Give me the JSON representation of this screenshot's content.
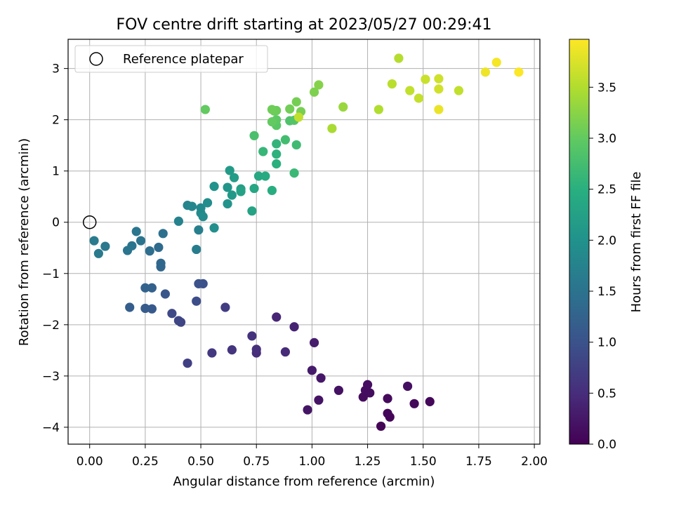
{
  "chart_data": {
    "type": "scatter",
    "title": "FOV centre drift starting at 2023/05/27 00:29:41",
    "xlabel": "Angular distance from reference (arcmin)",
    "ylabel": "Rotation from reference (arcmin)",
    "xlim": [
      -0.097,
      2.025
    ],
    "ylim": [
      -4.33,
      3.57
    ],
    "xticks": [
      "0.00",
      "0.25",
      "0.50",
      "0.75",
      "1.00",
      "1.25",
      "1.50",
      "1.75",
      "2.00"
    ],
    "yticks": [
      "−4",
      "−3",
      "−2",
      "−1",
      "0",
      "1",
      "2",
      "3"
    ],
    "grid": true,
    "legend": {
      "placement": "top-left",
      "entries": [
        "Reference platepar"
      ]
    },
    "reference_point": {
      "x": 0.0,
      "y": 0.0
    },
    "colorbar": {
      "label": "Hours from first FF file",
      "colormap": "viridis",
      "range": [
        0.0,
        3.97
      ],
      "ticks": [
        "0.0",
        "0.5",
        "1.0",
        "1.5",
        "2.0",
        "2.5",
        "3.0",
        "3.5"
      ]
    },
    "points": [
      {
        "x": 1.31,
        "y": -3.98,
        "h": 0.04
      },
      {
        "x": 1.35,
        "y": -3.8,
        "h": 0.05
      },
      {
        "x": 1.34,
        "y": -3.73,
        "h": 0.06
      },
      {
        "x": 1.46,
        "y": -3.54,
        "h": 0.08
      },
      {
        "x": 1.53,
        "y": -3.5,
        "h": 0.07
      },
      {
        "x": 1.34,
        "y": -3.44,
        "h": 0.1
      },
      {
        "x": 1.23,
        "y": -3.41,
        "h": 0.12
      },
      {
        "x": 1.26,
        "y": -3.33,
        "h": 0.13
      },
      {
        "x": 1.24,
        "y": -3.28,
        "h": 0.14
      },
      {
        "x": 1.25,
        "y": -3.17,
        "h": 0.15
      },
      {
        "x": 1.43,
        "y": -3.2,
        "h": 0.16
      },
      {
        "x": 1.12,
        "y": -3.28,
        "h": 0.18
      },
      {
        "x": 1.03,
        "y": -3.47,
        "h": 0.2
      },
      {
        "x": 0.98,
        "y": -3.66,
        "h": 0.22
      },
      {
        "x": 1.04,
        "y": -3.04,
        "h": 0.25
      },
      {
        "x": 1.0,
        "y": -2.89,
        "h": 0.28
      },
      {
        "x": 1.01,
        "y": -2.35,
        "h": 0.32
      },
      {
        "x": 0.92,
        "y": -2.04,
        "h": 0.38
      },
      {
        "x": 0.84,
        "y": -1.85,
        "h": 0.42
      },
      {
        "x": 0.88,
        "y": -2.53,
        "h": 0.46
      },
      {
        "x": 0.75,
        "y": -2.55,
        "h": 0.5
      },
      {
        "x": 0.75,
        "y": -2.48,
        "h": 0.53
      },
      {
        "x": 0.73,
        "y": -2.22,
        "h": 0.56
      },
      {
        "x": 0.64,
        "y": -2.49,
        "h": 0.6
      },
      {
        "x": 0.55,
        "y": -2.55,
        "h": 0.64
      },
      {
        "x": 0.61,
        "y": -1.66,
        "h": 0.7
      },
      {
        "x": 0.44,
        "y": -2.75,
        "h": 0.74
      },
      {
        "x": 0.41,
        "y": -1.95,
        "h": 0.8
      },
      {
        "x": 0.4,
        "y": -1.92,
        "h": 0.83
      },
      {
        "x": 0.37,
        "y": -1.78,
        "h": 0.88
      },
      {
        "x": 0.48,
        "y": -1.54,
        "h": 0.92
      },
      {
        "x": 0.51,
        "y": -1.2,
        "h": 0.96
      },
      {
        "x": 0.49,
        "y": -1.2,
        "h": 1.0
      },
      {
        "x": 0.34,
        "y": -1.4,
        "h": 1.05
      },
      {
        "x": 0.28,
        "y": -1.69,
        "h": 1.1
      },
      {
        "x": 0.25,
        "y": -1.68,
        "h": 1.14
      },
      {
        "x": 0.18,
        "y": -1.66,
        "h": 1.18
      },
      {
        "x": 0.28,
        "y": -1.28,
        "h": 1.22
      },
      {
        "x": 0.25,
        "y": -1.28,
        "h": 1.26
      },
      {
        "x": 0.32,
        "y": -0.87,
        "h": 1.3
      },
      {
        "x": 0.32,
        "y": -0.8,
        "h": 1.34
      },
      {
        "x": 0.31,
        "y": -0.49,
        "h": 1.38
      },
      {
        "x": 0.27,
        "y": -0.56,
        "h": 1.42
      },
      {
        "x": 0.33,
        "y": -0.22,
        "h": 1.46
      },
      {
        "x": 0.23,
        "y": -0.36,
        "h": 1.5
      },
      {
        "x": 0.19,
        "y": -0.46,
        "h": 1.52
      },
      {
        "x": 0.17,
        "y": -0.55,
        "h": 1.54
      },
      {
        "x": 0.21,
        "y": -0.18,
        "h": 1.56
      },
      {
        "x": 0.07,
        "y": -0.47,
        "h": 1.6
      },
      {
        "x": 0.04,
        "y": -0.61,
        "h": 1.62
      },
      {
        "x": 0.02,
        "y": -0.36,
        "h": 1.64
      },
      {
        "x": 0.48,
        "y": -0.53,
        "h": 1.66
      },
      {
        "x": 0.49,
        "y": -0.15,
        "h": 1.7
      },
      {
        "x": 0.4,
        "y": 0.02,
        "h": 1.74
      },
      {
        "x": 0.44,
        "y": 0.33,
        "h": 1.78
      },
      {
        "x": 0.46,
        "y": 0.31,
        "h": 1.82
      },
      {
        "x": 0.5,
        "y": 0.28,
        "h": 1.85
      },
      {
        "x": 0.5,
        "y": 0.18,
        "h": 1.88
      },
      {
        "x": 0.51,
        "y": 0.11,
        "h": 1.9
      },
      {
        "x": 0.53,
        "y": 0.38,
        "h": 1.92
      },
      {
        "x": 0.56,
        "y": -0.11,
        "h": 1.95
      },
      {
        "x": 0.56,
        "y": 0.7,
        "h": 2.0
      },
      {
        "x": 0.62,
        "y": 0.36,
        "h": 2.03
      },
      {
        "x": 0.62,
        "y": 0.68,
        "h": 2.06
      },
      {
        "x": 0.64,
        "y": 0.53,
        "h": 2.1
      },
      {
        "x": 0.63,
        "y": 1.01,
        "h": 2.14
      },
      {
        "x": 0.65,
        "y": 0.87,
        "h": 2.18
      },
      {
        "x": 0.68,
        "y": 0.65,
        "h": 2.22
      },
      {
        "x": 0.68,
        "y": 0.6,
        "h": 2.26
      },
      {
        "x": 0.73,
        "y": 0.22,
        "h": 2.3
      },
      {
        "x": 0.74,
        "y": 0.66,
        "h": 2.34
      },
      {
        "x": 0.76,
        "y": 0.9,
        "h": 2.38
      },
      {
        "x": 0.79,
        "y": 0.9,
        "h": 2.42
      },
      {
        "x": 0.82,
        "y": 0.62,
        "h": 2.46
      },
      {
        "x": 0.84,
        "y": 1.14,
        "h": 2.5
      },
      {
        "x": 0.84,
        "y": 1.33,
        "h": 2.54
      },
      {
        "x": 0.84,
        "y": 1.53,
        "h": 2.58
      },
      {
        "x": 0.78,
        "y": 1.38,
        "h": 2.62
      },
      {
        "x": 0.92,
        "y": 0.96,
        "h": 2.66
      },
      {
        "x": 0.93,
        "y": 1.51,
        "h": 2.7
      },
      {
        "x": 0.88,
        "y": 1.61,
        "h": 2.74
      },
      {
        "x": 0.74,
        "y": 1.69,
        "h": 2.8
      },
      {
        "x": 0.9,
        "y": 1.98,
        "h": 2.84
      },
      {
        "x": 0.92,
        "y": 1.99,
        "h": 2.88
      },
      {
        "x": 0.84,
        "y": 1.89,
        "h": 2.92
      },
      {
        "x": 0.84,
        "y": 2.0,
        "h": 2.96
      },
      {
        "x": 0.82,
        "y": 1.96,
        "h": 3.0
      },
      {
        "x": 0.83,
        "y": 2.17,
        "h": 3.03
      },
      {
        "x": 0.84,
        "y": 2.18,
        "h": 3.06
      },
      {
        "x": 0.82,
        "y": 2.2,
        "h": 3.08
      },
      {
        "x": 0.9,
        "y": 2.21,
        "h": 3.1
      },
      {
        "x": 0.93,
        "y": 2.35,
        "h": 3.12
      },
      {
        "x": 0.95,
        "y": 2.16,
        "h": 3.14
      },
      {
        "x": 0.52,
        "y": 2.2,
        "h": 3.0
      },
      {
        "x": 1.01,
        "y": 2.54,
        "h": 3.18
      },
      {
        "x": 1.03,
        "y": 2.68,
        "h": 3.22
      },
      {
        "x": 0.94,
        "y": 2.05,
        "h": 3.6
      },
      {
        "x": 1.14,
        "y": 2.25,
        "h": 3.35
      },
      {
        "x": 1.09,
        "y": 1.83,
        "h": 3.45
      },
      {
        "x": 1.3,
        "y": 2.2,
        "h": 3.5
      },
      {
        "x": 1.36,
        "y": 2.7,
        "h": 3.55
      },
      {
        "x": 1.39,
        "y": 3.2,
        "h": 3.52
      },
      {
        "x": 1.44,
        "y": 2.57,
        "h": 3.6
      },
      {
        "x": 1.48,
        "y": 2.42,
        "h": 3.62
      },
      {
        "x": 1.51,
        "y": 2.79,
        "h": 3.65
      },
      {
        "x": 1.57,
        "y": 2.8,
        "h": 3.68
      },
      {
        "x": 1.57,
        "y": 2.6,
        "h": 3.7
      },
      {
        "x": 1.57,
        "y": 2.2,
        "h": 3.85
      },
      {
        "x": 1.66,
        "y": 2.57,
        "h": 3.6
      },
      {
        "x": 1.78,
        "y": 2.93,
        "h": 3.88
      },
      {
        "x": 1.83,
        "y": 3.12,
        "h": 3.92
      },
      {
        "x": 1.93,
        "y": 2.93,
        "h": 3.96
      }
    ]
  }
}
